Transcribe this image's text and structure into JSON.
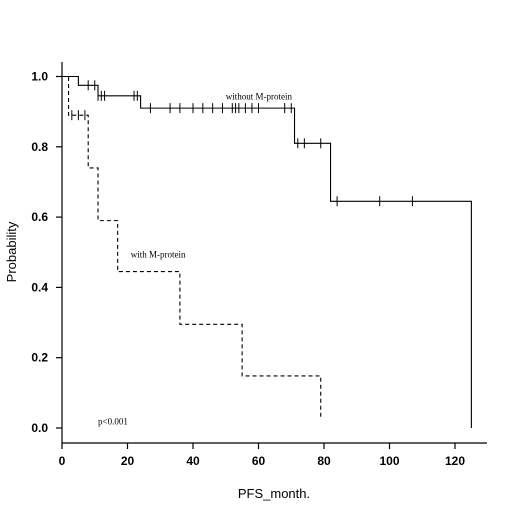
{
  "chart_data": {
    "type": "line",
    "xlabel": "PFS_month.",
    "ylabel": "Probability",
    "xlim": [
      0,
      130
    ],
    "ylim": [
      0,
      1.0
    ],
    "x_ticks": [
      0,
      20,
      40,
      60,
      80,
      100,
      120
    ],
    "y_ticks": [
      0.0,
      0.2,
      0.4,
      0.6,
      0.8,
      1.0
    ],
    "x_tick_labels": [
      "0",
      "20",
      "40",
      "60",
      "80",
      "100",
      "120"
    ],
    "y_tick_labels": [
      "0.0",
      "0.2",
      "0.4",
      "0.6",
      "0.8",
      "1.0"
    ],
    "grid": false,
    "annotations": [
      {
        "text": "p<0.001",
        "x": 11,
        "y": 0.01
      }
    ],
    "series": [
      {
        "name": "without M-protein",
        "style": "solid",
        "label_x": 50,
        "label_y": 0.935,
        "steps": [
          [
            0,
            1.0
          ],
          [
            5,
            0.975
          ],
          [
            11,
            0.945
          ],
          [
            24,
            0.91
          ],
          [
            71,
            0.81
          ],
          [
            82,
            0.645
          ],
          [
            125,
            0.645
          ],
          [
            125,
            0.0
          ]
        ],
        "censor_x": [
          8,
          10,
          11,
          12,
          13,
          22,
          23,
          27,
          33,
          36,
          40,
          43,
          46,
          49,
          52,
          53,
          54,
          56,
          58,
          60,
          68,
          70,
          72,
          74,
          79,
          84,
          97,
          107
        ]
      },
      {
        "name": "with M-protein",
        "style": "dashed",
        "label_x": 21,
        "label_y": 0.485,
        "steps": [
          [
            0,
            1.0
          ],
          [
            2,
            0.89
          ],
          [
            8,
            0.74
          ],
          [
            11,
            0.59
          ],
          [
            17,
            0.445
          ],
          [
            36,
            0.295
          ],
          [
            55,
            0.148
          ],
          [
            79,
            0.148
          ],
          [
            79,
            0.03
          ]
        ],
        "censor_x": [
          3,
          5,
          7
        ]
      }
    ]
  }
}
